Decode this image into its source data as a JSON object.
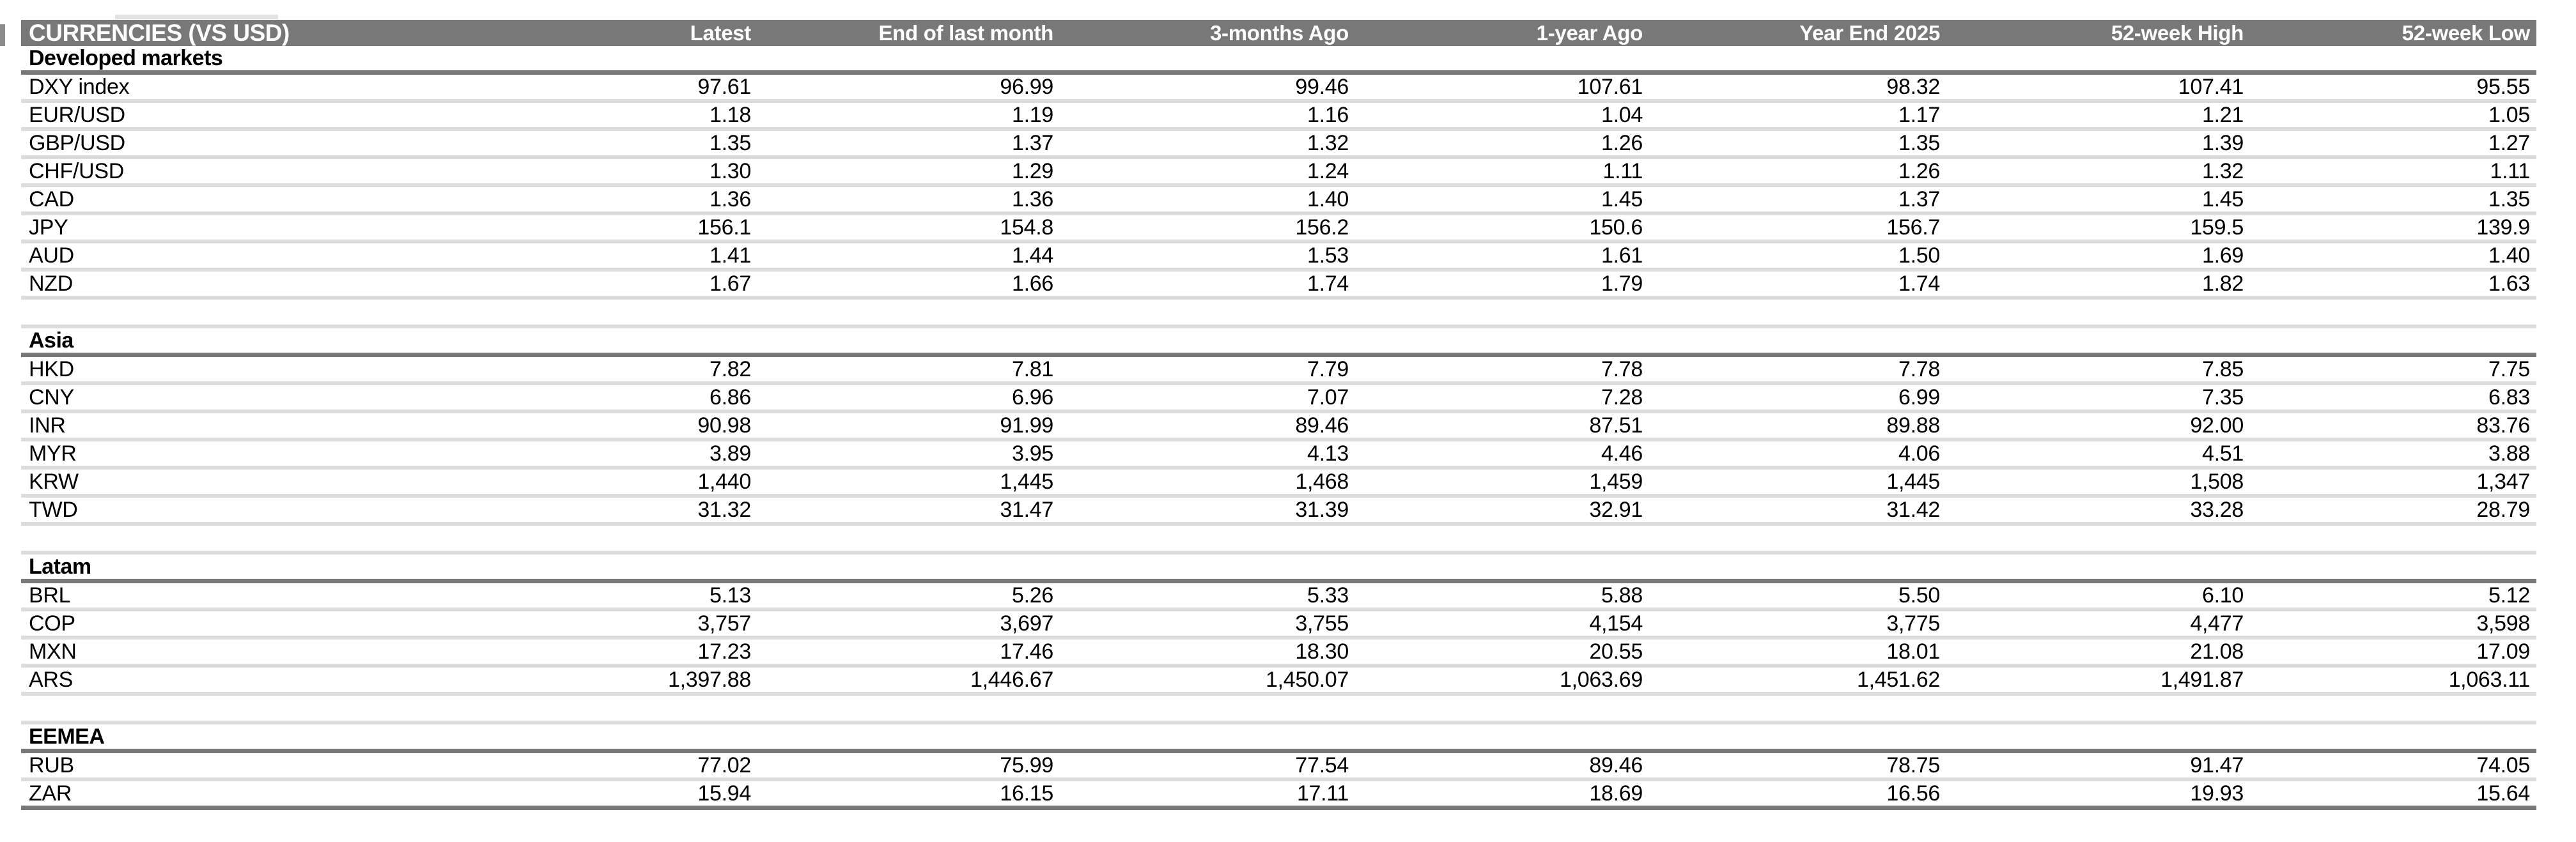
{
  "table": {
    "title": "CURRENCIES (VS USD)",
    "columns": [
      "Latest",
      "End of last month",
      "3-months Ago",
      "1-year Ago",
      "Year End 2025",
      "52-week High",
      "52-week Low"
    ],
    "sections": [
      {
        "name": "Developed markets",
        "rows": [
          {
            "label": "DXY index",
            "values": [
              "97.61",
              "96.99",
              "99.46",
              "107.61",
              "98.32",
              "107.41",
              "95.55"
            ]
          },
          {
            "label": "EUR/USD",
            "values": [
              "1.18",
              "1.19",
              "1.16",
              "1.04",
              "1.17",
              "1.21",
              "1.05"
            ]
          },
          {
            "label": "GBP/USD",
            "values": [
              "1.35",
              "1.37",
              "1.32",
              "1.26",
              "1.35",
              "1.39",
              "1.27"
            ]
          },
          {
            "label": "CHF/USD",
            "values": [
              "1.30",
              "1.29",
              "1.24",
              "1.11",
              "1.26",
              "1.32",
              "1.11"
            ]
          },
          {
            "label": "CAD",
            "values": [
              "1.36",
              "1.36",
              "1.40",
              "1.45",
              "1.37",
              "1.45",
              "1.35"
            ]
          },
          {
            "label": "JPY",
            "values": [
              "156.1",
              "154.8",
              "156.2",
              "150.6",
              "156.7",
              "159.5",
              "139.9"
            ]
          },
          {
            "label": "AUD",
            "values": [
              "1.41",
              "1.44",
              "1.53",
              "1.61",
              "1.50",
              "1.69",
              "1.40"
            ]
          },
          {
            "label": "NZD",
            "values": [
              "1.67",
              "1.66",
              "1.74",
              "1.79",
              "1.74",
              "1.82",
              "1.63"
            ]
          }
        ]
      },
      {
        "name": "Asia",
        "rows": [
          {
            "label": "HKD",
            "values": [
              "7.82",
              "7.81",
              "7.79",
              "7.78",
              "7.78",
              "7.85",
              "7.75"
            ]
          },
          {
            "label": "CNY",
            "values": [
              "6.86",
              "6.96",
              "7.07",
              "7.28",
              "6.99",
              "7.35",
              "6.83"
            ]
          },
          {
            "label": "INR",
            "values": [
              "90.98",
              "91.99",
              "89.46",
              "87.51",
              "89.88",
              "92.00",
              "83.76"
            ]
          },
          {
            "label": "MYR",
            "values": [
              "3.89",
              "3.95",
              "4.13",
              "4.46",
              "4.06",
              "4.51",
              "3.88"
            ]
          },
          {
            "label": "KRW",
            "values": [
              "1,440",
              "1,445",
              "1,468",
              "1,459",
              "1,445",
              "1,508",
              "1,347"
            ]
          },
          {
            "label": "TWD",
            "values": [
              "31.32",
              "31.47",
              "31.39",
              "32.91",
              "31.42",
              "33.28",
              "28.79"
            ]
          }
        ]
      },
      {
        "name": "Latam",
        "rows": [
          {
            "label": "BRL",
            "values": [
              "5.13",
              "5.26",
              "5.33",
              "5.88",
              "5.50",
              "6.10",
              "5.12"
            ]
          },
          {
            "label": "COP",
            "values": [
              "3,757",
              "3,697",
              "3,755",
              "4,154",
              "3,775",
              "4,477",
              "3,598"
            ]
          },
          {
            "label": "MXN",
            "values": [
              "17.23",
              "17.46",
              "18.30",
              "20.55",
              "18.01",
              "21.08",
              "17.09"
            ]
          },
          {
            "label": "ARS",
            "values": [
              "1,397.88",
              "1,446.67",
              "1,450.07",
              "1,063.69",
              "1,451.62",
              "1,491.87",
              "1,063.11"
            ]
          }
        ]
      },
      {
        "name": "EEMEA",
        "rows": [
          {
            "label": "RUB",
            "values": [
              "77.02",
              "75.99",
              "77.54",
              "89.46",
              "78.75",
              "91.47",
              "74.05"
            ]
          },
          {
            "label": "ZAR",
            "values": [
              "15.94",
              "16.15",
              "17.11",
              "18.69",
              "16.56",
              "19.93",
              "15.64"
            ]
          }
        ]
      }
    ]
  },
  "colors": {
    "header_band": "#787878",
    "section_rule": "#787878",
    "row_rule": "#dcdcdc",
    "header_text": "#ffffff",
    "body_text": "#000000",
    "background": "#ffffff"
  }
}
